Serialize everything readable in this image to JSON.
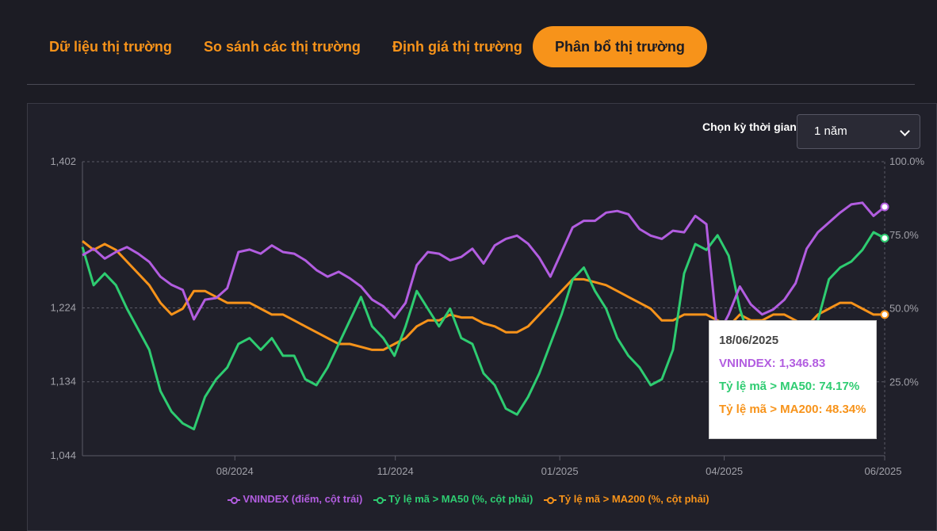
{
  "tabs": [
    {
      "label": "Dữ liệu thị trường"
    },
    {
      "label": "So sánh các thị trường"
    },
    {
      "label": "Định giá thị trường"
    },
    {
      "label": "Phân bổ thị trường"
    }
  ],
  "period": {
    "label": "Chọn kỳ thời gian",
    "selected": "1 năm"
  },
  "colors": {
    "vnindex": "#b25de0",
    "ma50": "#2ecc71",
    "ma200": "#f7931a"
  },
  "tooltip": {
    "date": "18/06/2025",
    "vnindex": "VNINDEX: 1,346.83",
    "ma50": "Tỷ lệ mã > MA50: 74.17%",
    "ma200": "Tỷ lệ mã > MA200: 48.34%"
  },
  "chart_data": {
    "type": "line",
    "x_ticks": [
      "08/2024",
      "11/2024",
      "01/2025",
      "04/2025",
      "06/2025"
    ],
    "y_left_ticks": [
      "1,402",
      "1,224",
      "1,134",
      "1,044"
    ],
    "y_right_ticks": [
      "100.0%",
      "75.0%",
      "50.0%",
      "25.0%"
    ],
    "y_left_range": [
      1044,
      1402
    ],
    "y_right_range": [
      0,
      100
    ],
    "grid": "dashed",
    "legend_position": "bottom",
    "legend": [
      "VNINDEX (điểm, cột trái)",
      "Tỷ lệ mã > MA50 (%, cột phải)",
      "Tỷ lệ mã > MA200 (%, cột phải)"
    ],
    "series": [
      {
        "key": "vnindex",
        "axis": "left",
        "values": [
          1288,
          1296,
          1284,
          1292,
          1298,
          1290,
          1280,
          1262,
          1252,
          1246,
          1210,
          1234,
          1236,
          1248,
          1292,
          1295,
          1290,
          1300,
          1292,
          1290,
          1282,
          1270,
          1262,
          1268,
          1260,
          1250,
          1234,
          1226,
          1212,
          1230,
          1276,
          1292,
          1290,
          1282,
          1286,
          1296,
          1278,
          1300,
          1308,
          1312,
          1302,
          1285,
          1262,
          1292,
          1322,
          1330,
          1330,
          1340,
          1342,
          1338,
          1320,
          1312,
          1308,
          1318,
          1316,
          1336,
          1326,
          1190,
          1216,
          1250,
          1228,
          1216,
          1222,
          1234,
          1254,
          1296,
          1316,
          1328,
          1340,
          1350,
          1352,
          1336,
          1347
        ]
      },
      {
        "key": "ma50",
        "axis": "right",
        "values": [
          71,
          58,
          62,
          58,
          50,
          43,
          36,
          22,
          15,
          11,
          9,
          20,
          26,
          30,
          38,
          40,
          36,
          40,
          34,
          34,
          26,
          24,
          30,
          38,
          46,
          54,
          44,
          40,
          34,
          44,
          56,
          50,
          44,
          50,
          40,
          38,
          28,
          24,
          16,
          14,
          20,
          28,
          38,
          48,
          60,
          64,
          56,
          50,
          40,
          34,
          30,
          24,
          26,
          36,
          62,
          72,
          70,
          75,
          68,
          50,
          38,
          28,
          30,
          24,
          22,
          24,
          46,
          60,
          64,
          66,
          70,
          76,
          74
        ]
      },
      {
        "key": "ma200",
        "axis": "right",
        "values": [
          73,
          70,
          72,
          70,
          66,
          62,
          58,
          52,
          48,
          50,
          56,
          56,
          54,
          52,
          52,
          52,
          50,
          48,
          48,
          46,
          44,
          42,
          40,
          38,
          38,
          37,
          36,
          36,
          38,
          40,
          44,
          46,
          46,
          48,
          47,
          47,
          45,
          44,
          42,
          42,
          44,
          48,
          52,
          56,
          60,
          60,
          59,
          58,
          56,
          54,
          52,
          50,
          46,
          46,
          48,
          48,
          48,
          46,
          44,
          48,
          46,
          46,
          48,
          48,
          46,
          44,
          48,
          50,
          52,
          52,
          50,
          48,
          48
        ]
      }
    ]
  }
}
